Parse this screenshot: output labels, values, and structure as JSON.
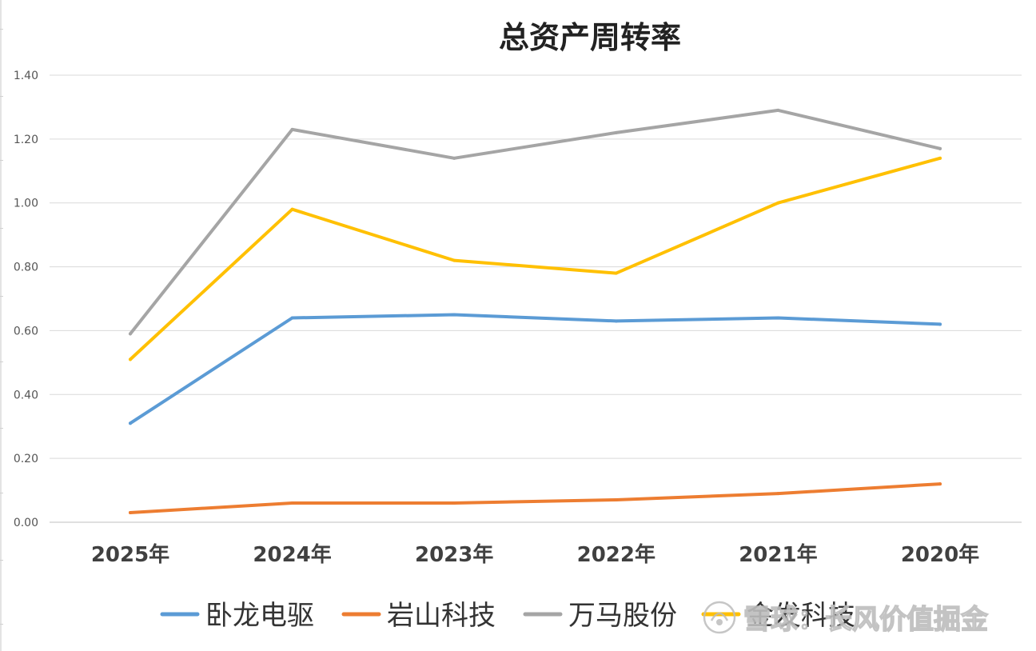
{
  "chart_data": {
    "type": "line",
    "title": "总资产周转率",
    "xlabel": "",
    "ylabel": "",
    "categories": [
      "2025年",
      "2024年",
      "2023年",
      "2022年",
      "2021年",
      "2020年"
    ],
    "ylim": [
      0,
      1.4
    ],
    "yticks": [
      "0.00",
      "0.20",
      "0.40",
      "0.60",
      "0.80",
      "1.00",
      "1.20",
      "1.40"
    ],
    "grid": true,
    "legend_position": "bottom",
    "series": [
      {
        "name": "卧龙电驱",
        "color": "#5b9bd5",
        "values": [
          0.31,
          0.64,
          0.65,
          0.63,
          0.64,
          0.62
        ]
      },
      {
        "name": "岩山科技",
        "color": "#ed7d31",
        "values": [
          0.03,
          0.06,
          0.06,
          0.07,
          0.09,
          0.12
        ]
      },
      {
        "name": "万马股份",
        "color": "#a5a5a5",
        "values": [
          0.59,
          1.23,
          1.14,
          1.22,
          1.29,
          1.17
        ]
      },
      {
        "name": "金发科技",
        "color": "#ffc000",
        "values": [
          0.51,
          0.98,
          0.82,
          0.78,
          1.0,
          1.14
        ]
      }
    ]
  },
  "watermark": {
    "text": "雪球：长风价值掘金",
    "icon": "snowball-logo-icon"
  }
}
